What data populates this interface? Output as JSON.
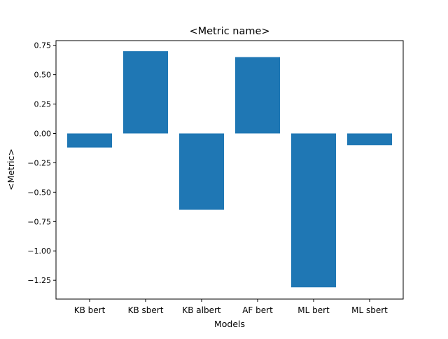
{
  "chart_data": {
    "type": "bar",
    "title": "<Metric name>",
    "xlabel": "Models",
    "ylabel": "<Metric>",
    "categories": [
      "KB bert",
      "KB sbert",
      "KB albert",
      "AF bert",
      "ML bert",
      "ML sbert"
    ],
    "values": [
      -0.12,
      0.7,
      -0.65,
      0.65,
      -1.31,
      -0.1
    ],
    "ylim": [
      -1.41,
      0.79
    ],
    "yticks": [
      0.75,
      0.5,
      0.25,
      0.0,
      -0.25,
      -0.5,
      -0.75,
      -1.0,
      -1.25
    ],
    "ytick_labels": [
      "0.75",
      "0.50",
      "0.25",
      "0.00",
      "−0.25",
      "−0.50",
      "−0.75",
      "−1.00",
      "−1.25"
    ],
    "grid": false,
    "legend": "none",
    "bar_color": "#1f77b4"
  }
}
